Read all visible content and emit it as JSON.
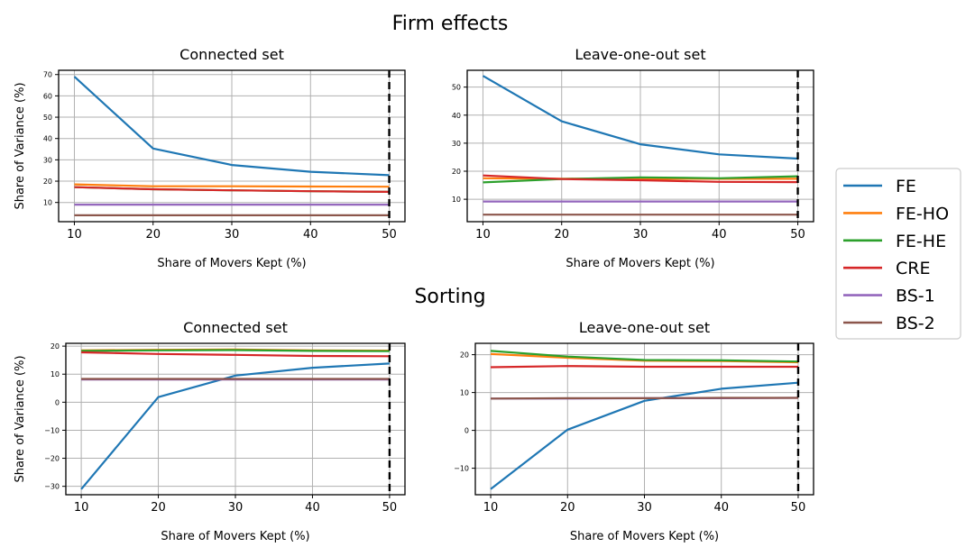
{
  "figure": {
    "sections": [
      {
        "title": "Firm effects"
      },
      {
        "title": "Sorting"
      }
    ]
  },
  "legend": {
    "entries": [
      {
        "label": "FE",
        "color": "#1f77b4"
      },
      {
        "label": "FE-HO",
        "color": "#ff7f0e"
      },
      {
        "label": "FE-HE",
        "color": "#2ca02c"
      },
      {
        "label": "CRE",
        "color": "#d62728"
      },
      {
        "label": "BS-1",
        "color": "#9467bd"
      },
      {
        "label": "BS-2",
        "color": "#8c564b"
      }
    ]
  },
  "chart_data": [
    {
      "type": "line",
      "section": "Firm effects",
      "title": "Connected set",
      "xlabel": "Share of Movers Kept (%)",
      "ylabel": "Share of Variance (%)",
      "xlim": [
        8,
        52
      ],
      "ylim": [
        1,
        72
      ],
      "xticks": [
        10,
        20,
        30,
        40,
        50
      ],
      "yticks": [
        10,
        20,
        30,
        40,
        50,
        60,
        70
      ],
      "grid": true,
      "vline": 50,
      "x": [
        10,
        20,
        30,
        40,
        50
      ],
      "series": [
        {
          "name": "FE",
          "color": "#1f77b4",
          "values": [
            69,
            35.3,
            27.6,
            24.4,
            22.8
          ]
        },
        {
          "name": "FE-HO",
          "color": "#ff7f0e",
          "values": [
            18.5,
            17.6,
            17.6,
            17.5,
            17.4
          ]
        },
        {
          "name": "FE-HE",
          "color": "#2ca02c",
          "values": [
            17.2,
            16.2,
            15.7,
            15.3,
            15.0
          ]
        },
        {
          "name": "CRE",
          "color": "#d62728",
          "values": [
            17.2,
            16.2,
            15.7,
            15.3,
            15.0
          ]
        },
        {
          "name": "BS-1",
          "color": "#9467bd",
          "values": [
            9.0,
            9.0,
            9.0,
            9.0,
            9.0
          ]
        },
        {
          "name": "BS-2",
          "color": "#8c564b",
          "values": [
            4.0,
            4.0,
            4.0,
            4.0,
            4.0
          ]
        }
      ]
    },
    {
      "type": "line",
      "section": "Firm effects",
      "title": "Leave-one-out set",
      "xlabel": "Share of Movers Kept (%)",
      "ylabel": "",
      "xlim": [
        8,
        52
      ],
      "ylim": [
        2,
        56
      ],
      "xticks": [
        10,
        20,
        30,
        40,
        50
      ],
      "yticks": [
        10,
        20,
        30,
        40,
        50
      ],
      "grid": true,
      "vline": 50,
      "x": [
        10,
        20,
        30,
        40,
        50
      ],
      "series": [
        {
          "name": "FE",
          "color": "#1f77b4",
          "values": [
            54.0,
            37.8,
            29.6,
            26.0,
            24.5
          ]
        },
        {
          "name": "FE-HO",
          "color": "#ff7f0e",
          "values": [
            17.5,
            17.3,
            17.3,
            17.3,
            17.3
          ]
        },
        {
          "name": "FE-HE",
          "color": "#2ca02c",
          "values": [
            16.0,
            17.2,
            17.8,
            17.5,
            18.2
          ]
        },
        {
          "name": "CRE",
          "color": "#d62728",
          "values": [
            18.5,
            17.2,
            16.8,
            16.2,
            16.1
          ]
        },
        {
          "name": "BS-1",
          "color": "#9467bd",
          "values": [
            9.2,
            9.2,
            9.2,
            9.2,
            9.2
          ]
        },
        {
          "name": "BS-2",
          "color": "#8c564b",
          "values": [
            4.5,
            4.5,
            4.5,
            4.5,
            4.5
          ]
        }
      ]
    },
    {
      "type": "line",
      "section": "Sorting",
      "title": "Connected set",
      "xlabel": "Share of Movers Kept (%)",
      "ylabel": "Share of Variance (%)",
      "xlim": [
        8,
        52
      ],
      "ylim": [
        -33,
        21
      ],
      "xticks": [
        10,
        20,
        30,
        40,
        50
      ],
      "yticks": [
        -30,
        -20,
        -10,
        0,
        10,
        20
      ],
      "grid": true,
      "vline": 50,
      "x": [
        10,
        20,
        30,
        40,
        50
      ],
      "series": [
        {
          "name": "FE",
          "color": "#1f77b4",
          "values": [
            -31,
            1.8,
            9.5,
            12.3,
            13.8
          ]
        },
        {
          "name": "FE-HO",
          "color": "#ff7f0e",
          "values": [
            18.5,
            18.7,
            18.8,
            18.5,
            18.4
          ]
        },
        {
          "name": "FE-HE",
          "color": "#2ca02c",
          "values": [
            18.3,
            18.5,
            18.6,
            18.3,
            18.2
          ]
        },
        {
          "name": "CRE",
          "color": "#d62728",
          "values": [
            17.8,
            17.2,
            16.9,
            16.5,
            16.4
          ]
        },
        {
          "name": "BS-1",
          "color": "#9467bd",
          "values": [
            8.1,
            8.1,
            8.1,
            8.1,
            8.1
          ]
        },
        {
          "name": "BS-2",
          "color": "#8c564b",
          "values": [
            8.3,
            8.3,
            8.3,
            8.3,
            8.3
          ]
        }
      ]
    },
    {
      "type": "line",
      "section": "Sorting",
      "title": "Leave-one-out set",
      "xlabel": "Share of Movers Kept (%)",
      "ylabel": "",
      "xlim": [
        8,
        52
      ],
      "ylim": [
        -17,
        23
      ],
      "xticks": [
        10,
        20,
        30,
        40,
        50
      ],
      "yticks": [
        -10,
        0,
        10,
        20
      ],
      "grid": true,
      "vline": 50,
      "x": [
        10,
        20,
        30,
        40,
        50
      ],
      "series": [
        {
          "name": "FE",
          "color": "#1f77b4",
          "values": [
            -15.5,
            0.2,
            7.8,
            11.0,
            12.6
          ]
        },
        {
          "name": "FE-HO",
          "color": "#ff7f0e",
          "values": [
            20.2,
            19.2,
            18.4,
            18.3,
            18.0
          ]
        },
        {
          "name": "FE-HE",
          "color": "#2ca02c",
          "values": [
            21.0,
            19.5,
            18.6,
            18.5,
            18.2
          ]
        },
        {
          "name": "CRE",
          "color": "#d62728",
          "values": [
            16.7,
            17.0,
            16.8,
            16.8,
            16.8
          ]
        },
        {
          "name": "BS-1",
          "color": "#9467bd",
          "values": [
            8.4,
            8.4,
            8.5,
            8.5,
            8.6
          ]
        },
        {
          "name": "BS-2",
          "color": "#8c564b",
          "values": [
            8.4,
            8.5,
            8.5,
            8.6,
            8.6
          ]
        }
      ]
    }
  ]
}
